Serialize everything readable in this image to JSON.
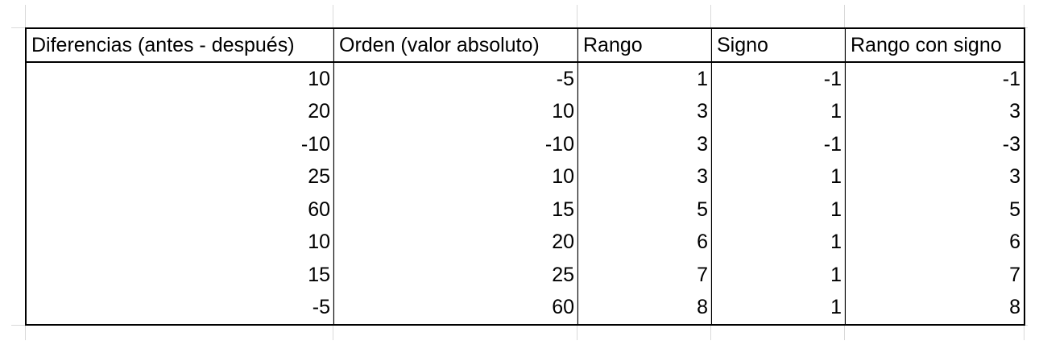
{
  "sheet": {
    "headers": [
      "Diferencias (antes - después)",
      "Orden (valor absoluto)",
      "Rango",
      "Signo",
      "Rango con signo"
    ],
    "rows": [
      [
        "10",
        "-5",
        "1",
        "-1",
        "-1"
      ],
      [
        "20",
        "10",
        "3",
        "1",
        "3"
      ],
      [
        "-10",
        "-10",
        "3",
        "-1",
        "-3"
      ],
      [
        "25",
        "10",
        "3",
        "1",
        "3"
      ],
      [
        "60",
        "15",
        "5",
        "1",
        "5"
      ],
      [
        "10",
        "20",
        "6",
        "1",
        "6"
      ],
      [
        "15",
        "25",
        "7",
        "1",
        "7"
      ],
      [
        "-5",
        "60",
        "8",
        "1",
        "8"
      ]
    ]
  },
  "colors": {
    "border": "#000000",
    "gridline": "#d9d9d9",
    "background": "#ffffff"
  }
}
